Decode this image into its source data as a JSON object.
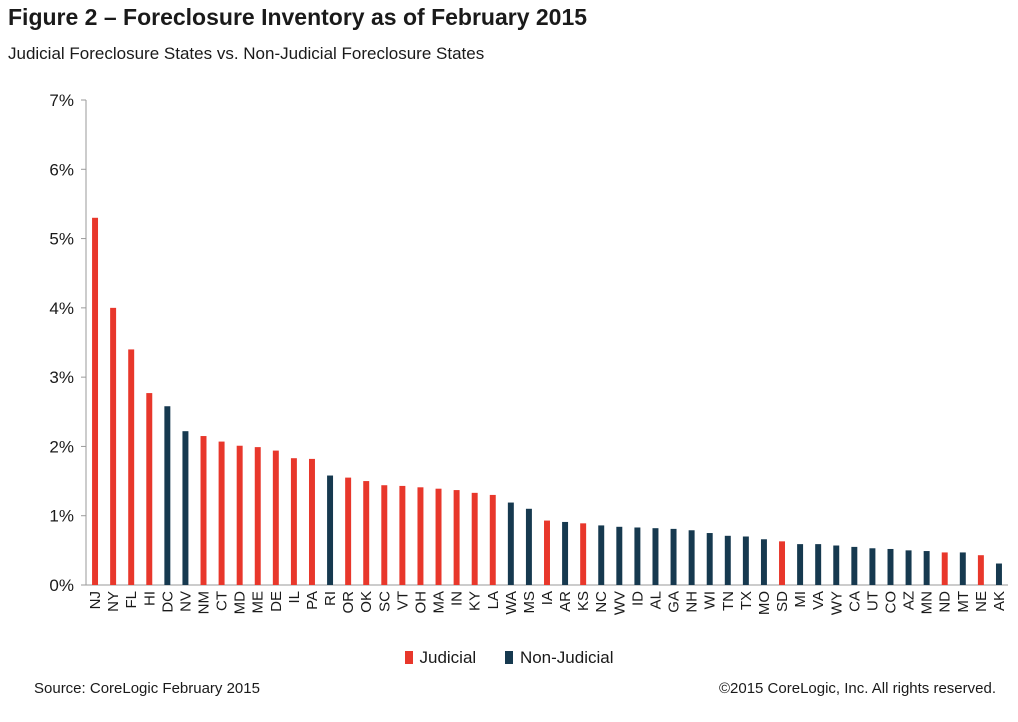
{
  "header": {
    "title": "Figure 2 – Foreclosure Inventory as of February 2015",
    "subtitle": "Judicial Foreclosure States vs. Non-Judicial Foreclosure States"
  },
  "footer": {
    "source": "Source: CoreLogic February 2015",
    "copyright": "©2015 CoreLogic, Inc. All rights reserved."
  },
  "legend": {
    "judicial": "Judicial",
    "non_judicial": "Non-Judicial"
  },
  "colors": {
    "judicial": "#e8372b",
    "non_judicial": "#16394f",
    "axis": "#9a9a9a"
  },
  "chart_data": {
    "type": "bar",
    "title": "Figure 2 – Foreclosure Inventory as of February 2015",
    "subtitle": "Judicial Foreclosure States vs. Non-Judicial Foreclosure States",
    "xlabel": "",
    "ylabel": "",
    "ylim": [
      0,
      7
    ],
    "yticks": [
      0,
      1,
      2,
      3,
      4,
      5,
      6,
      7
    ],
    "ytick_labels": [
      "0%",
      "1%",
      "2%",
      "3%",
      "4%",
      "5%",
      "6%",
      "7%"
    ],
    "grid": false,
    "legend_position": "bottom-center",
    "categories": [
      "NJ",
      "NY",
      "FL",
      "HI",
      "DC",
      "NV",
      "NM",
      "CT",
      "MD",
      "ME",
      "DE",
      "IL",
      "PA",
      "RI",
      "OR",
      "OK",
      "SC",
      "VT",
      "OH",
      "MA",
      "IN",
      "KY",
      "LA",
      "WA",
      "MS",
      "IA",
      "AR",
      "KS",
      "NC",
      "WV",
      "ID",
      "AL",
      "GA",
      "NH",
      "WI",
      "TN",
      "TX",
      "MO",
      "SD",
      "MI",
      "VA",
      "WY",
      "CA",
      "UT",
      "CO",
      "AZ",
      "MN",
      "ND",
      "MT",
      "NE",
      "AK"
    ],
    "values": [
      5.3,
      4.0,
      3.4,
      2.77,
      2.58,
      2.22,
      2.15,
      2.07,
      2.01,
      1.99,
      1.94,
      1.83,
      1.82,
      1.58,
      1.55,
      1.5,
      1.44,
      1.43,
      1.41,
      1.39,
      1.37,
      1.33,
      1.3,
      1.19,
      1.1,
      0.93,
      0.91,
      0.89,
      0.86,
      0.84,
      0.83,
      0.82,
      0.81,
      0.79,
      0.75,
      0.71,
      0.7,
      0.66,
      0.63,
      0.59,
      0.59,
      0.57,
      0.55,
      0.53,
      0.52,
      0.5,
      0.49,
      0.47,
      0.47,
      0.43,
      0.31
    ],
    "types": [
      "judicial",
      "judicial",
      "judicial",
      "judicial",
      "non_judicial",
      "non_judicial",
      "judicial",
      "judicial",
      "judicial",
      "judicial",
      "judicial",
      "judicial",
      "judicial",
      "non_judicial",
      "judicial",
      "judicial",
      "judicial",
      "judicial",
      "judicial",
      "judicial",
      "judicial",
      "judicial",
      "judicial",
      "non_judicial",
      "non_judicial",
      "judicial",
      "non_judicial",
      "judicial",
      "non_judicial",
      "non_judicial",
      "non_judicial",
      "non_judicial",
      "non_judicial",
      "non_judicial",
      "non_judicial",
      "non_judicial",
      "non_judicial",
      "non_judicial",
      "judicial",
      "non_judicial",
      "non_judicial",
      "non_judicial",
      "non_judicial",
      "non_judicial",
      "non_judicial",
      "non_judicial",
      "non_judicial",
      "judicial",
      "non_judicial",
      "judicial",
      "non_judicial"
    ]
  }
}
